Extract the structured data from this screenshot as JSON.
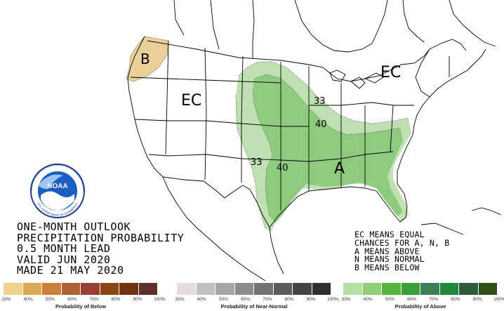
{
  "map": {
    "labels": {
      "below_region": "B",
      "ec_west": "EC",
      "ec_east": "EC",
      "above_region": "A",
      "contour_33": "33",
      "contour_40_south": "40",
      "contour_33_north": "33",
      "contour_40_north": "40"
    },
    "colors": {
      "below_33": "#ebd09a",
      "above_33": "#bfe0b0",
      "above_40": "#8ecb7e",
      "contour_line": "#555555",
      "border_line": "#000000"
    }
  },
  "logo": {
    "acronym": "NOAA",
    "ring_text": "NATIONAL OCEANIC AND ATMOSPHERIC ADMINISTRATION",
    "ring_text_bottom": "U.S. DEPARTMENT OF COMMERCE"
  },
  "title": {
    "line1": "ONE-MONTH OUTLOOK",
    "line2": "PRECIPITATION PROBABILITY",
    "line3": "0.5 MONTH LEAD",
    "line4": "VALID JUN 2020",
    "line5": "MADE 21 MAY 2020"
  },
  "legend_text": {
    "line1": "EC MEANS EQUAL",
    "line2": "CHANCES FOR A, N, B",
    "line3": "A MEANS ABOVE",
    "line4": "N MEANS NORMAL",
    "line5": "B MEANS BELOW"
  },
  "scales": {
    "below": {
      "title": "Probability of Below",
      "ticks": [
        "33%",
        "40%",
        "50%",
        "60%",
        "70%",
        "80%",
        "90%",
        "100%"
      ],
      "colors": [
        "#f0d290",
        "#dcaa55",
        "#c9803a",
        "#ad6135",
        "#9b3f36",
        "#8a4511",
        "#70330e",
        "#5a2f2a"
      ]
    },
    "normal": {
      "title": "Probability of Near-Normal",
      "ticks": [
        "33%",
        "40%",
        "50%",
        "60%",
        "70%",
        "80%",
        "90%",
        "100%"
      ],
      "colors": [
        "#e3dedd",
        "#c4c0c0",
        "#a8a5a5",
        "#8d8a8a",
        "#737171",
        "#5c5a5a",
        "#454444",
        "#2f2f2f"
      ]
    },
    "above": {
      "title": "Probability of Above",
      "ticks": [
        "33%",
        "40%",
        "50%",
        "60%",
        "70%",
        "80%",
        "90%",
        "100%"
      ],
      "colors": [
        "#b7dfa8",
        "#8fcf78",
        "#56b33e",
        "#37a036",
        "#3a7f57",
        "#1f8a3c",
        "#2b5b38",
        "#2e5016"
      ]
    }
  }
}
